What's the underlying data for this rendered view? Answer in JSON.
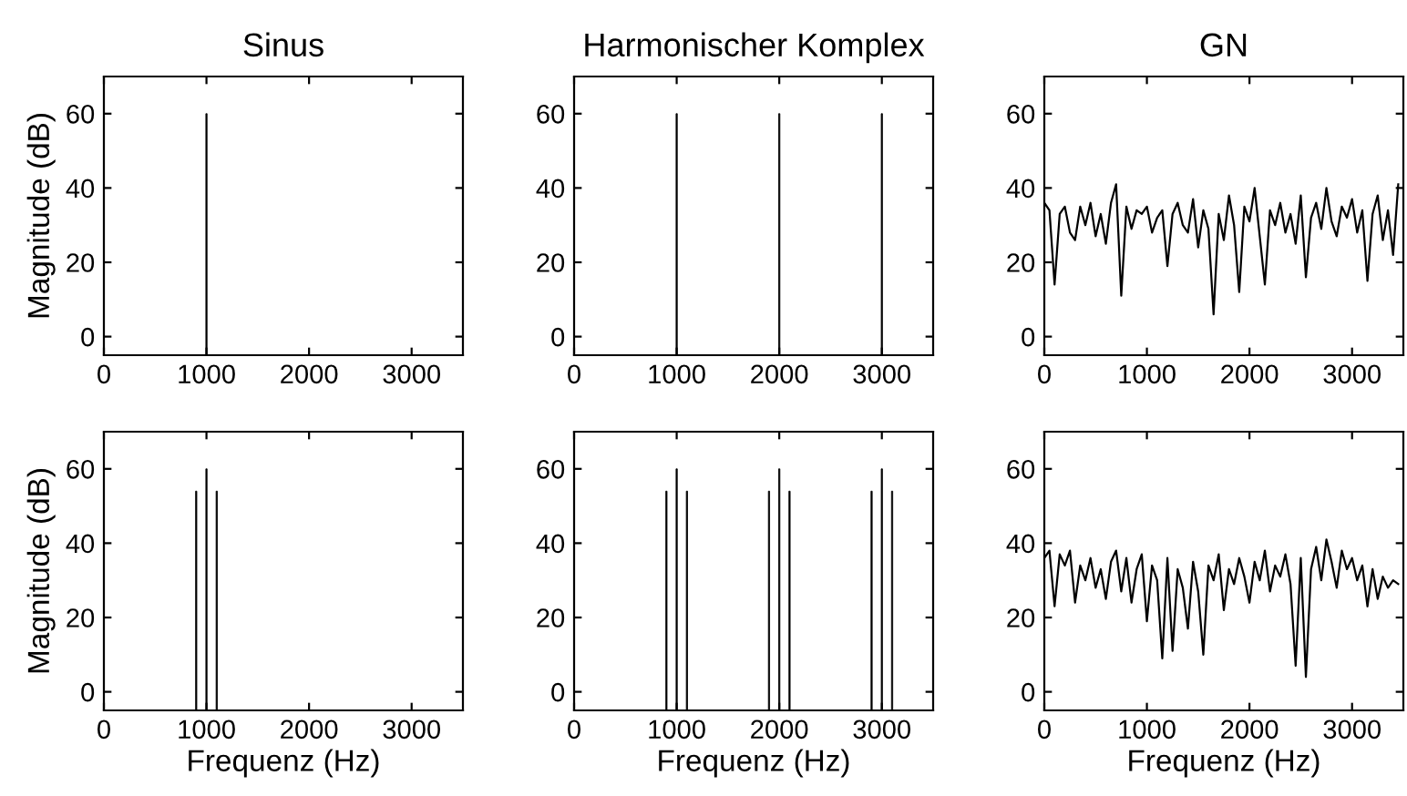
{
  "chart_data": [
    {
      "type": "bar",
      "title": "Sinus",
      "ylabel": "Magnitude (dB)",
      "x": [
        1000
      ],
      "base": [
        -5
      ],
      "values": [
        65
      ],
      "color": "#000000",
      "xlim": [
        0,
        3500
      ],
      "ylim": [
        -5,
        70
      ],
      "xticks": [
        0,
        1000,
        2000,
        3000
      ],
      "yticks": [
        0,
        20,
        40,
        60
      ],
      "grid": false
    },
    {
      "type": "bar",
      "title": "Harmonischer Komplex",
      "x": [
        1000,
        2000,
        3000
      ],
      "base": [
        -5,
        -5,
        -5
      ],
      "values": [
        65,
        65,
        65
      ],
      "color": "#000000",
      "xlim": [
        0,
        3500
      ],
      "ylim": [
        -5,
        70
      ],
      "xticks": [
        0,
        1000,
        2000,
        3000
      ],
      "yticks": [
        0,
        20,
        40,
        60
      ],
      "grid": false
    },
    {
      "type": "line",
      "title": "GN",
      "x": [
        0,
        50,
        100,
        150,
        200,
        250,
        300,
        350,
        400,
        450,
        500,
        550,
        600,
        650,
        700,
        750,
        800,
        850,
        900,
        950,
        1000,
        1050,
        1100,
        1150,
        1200,
        1250,
        1300,
        1350,
        1400,
        1450,
        1500,
        1550,
        1600,
        1650,
        1700,
        1750,
        1800,
        1850,
        1900,
        1950,
        2000,
        2050,
        2100,
        2150,
        2200,
        2250,
        2300,
        2350,
        2400,
        2450,
        2500,
        2550,
        2600,
        2650,
        2700,
        2750,
        2800,
        2850,
        2900,
        2950,
        3000,
        3050,
        3100,
        3150,
        3200,
        3250,
        3300,
        3350,
        3400,
        3450
      ],
      "values": [
        36,
        34,
        14,
        33,
        35,
        28,
        26,
        35,
        30,
        36,
        27,
        33,
        25,
        36,
        41,
        11,
        35,
        29,
        34,
        33,
        35,
        28,
        32,
        34,
        19,
        33,
        36,
        30,
        28,
        37,
        24,
        34,
        29,
        6,
        33,
        26,
        38,
        30,
        12,
        35,
        31,
        40,
        27,
        14,
        34,
        30,
        36,
        28,
        33,
        25,
        38,
        16,
        32,
        36,
        29,
        40,
        31,
        27,
        35,
        32,
        37,
        28,
        34,
        15,
        33,
        38,
        26,
        34,
        22,
        41
      ],
      "color": "#000000",
      "xlim": [
        0,
        3500
      ],
      "ylim": [
        -5,
        70
      ],
      "xticks": [
        0,
        1000,
        2000,
        3000
      ],
      "yticks": [
        0,
        20,
        40,
        60
      ],
      "grid": false
    },
    {
      "type": "bar",
      "ylabel": "Magnitude (dB)",
      "xlabel": "Frequenz (Hz)",
      "x": [
        900,
        1000,
        1100
      ],
      "base": [
        -5,
        -5,
        -5
      ],
      "values": [
        59,
        65,
        59
      ],
      "color": "#000000",
      "xlim": [
        0,
        3500
      ],
      "ylim": [
        -5,
        70
      ],
      "xticks": [
        0,
        1000,
        2000,
        3000
      ],
      "yticks": [
        0,
        20,
        40,
        60
      ],
      "grid": false
    },
    {
      "type": "bar",
      "xlabel": "Frequenz (Hz)",
      "x": [
        900,
        1000,
        1100,
        1900,
        2000,
        2100,
        2900,
        3000,
        3100
      ],
      "base": [
        -5,
        -5,
        -5,
        -5,
        -5,
        -5,
        -5,
        -5,
        -5
      ],
      "values": [
        59,
        65,
        59,
        59,
        65,
        59,
        59,
        65,
        59
      ],
      "color": "#000000",
      "xlim": [
        0,
        3500
      ],
      "ylim": [
        -5,
        70
      ],
      "xticks": [
        0,
        1000,
        2000,
        3000
      ],
      "yticks": [
        0,
        20,
        40,
        60
      ],
      "grid": false
    },
    {
      "type": "line",
      "xlabel": "Frequenz (Hz)",
      "x": [
        0,
        50,
        100,
        150,
        200,
        250,
        300,
        350,
        400,
        450,
        500,
        550,
        600,
        650,
        700,
        750,
        800,
        850,
        900,
        950,
        1000,
        1050,
        1100,
        1150,
        1200,
        1250,
        1300,
        1350,
        1400,
        1450,
        1500,
        1550,
        1600,
        1650,
        1700,
        1750,
        1800,
        1850,
        1900,
        1950,
        2000,
        2050,
        2100,
        2150,
        2200,
        2250,
        2300,
        2350,
        2400,
        2450,
        2500,
        2550,
        2600,
        2650,
        2700,
        2750,
        2800,
        2850,
        2900,
        2950,
        3000,
        3050,
        3100,
        3150,
        3200,
        3250,
        3300,
        3350,
        3400,
        3450
      ],
      "values": [
        36,
        38,
        23,
        37,
        34,
        38,
        24,
        34,
        30,
        36,
        28,
        33,
        25,
        35,
        38,
        27,
        36,
        24,
        33,
        37,
        19,
        34,
        30,
        9,
        36,
        11,
        33,
        28,
        17,
        35,
        27,
        10,
        34,
        30,
        37,
        22,
        33,
        29,
        36,
        31,
        24,
        35,
        30,
        38,
        27,
        34,
        31,
        37,
        29,
        7,
        36,
        4,
        33,
        39,
        30,
        41,
        35,
        28,
        38,
        33,
        36,
        30,
        34,
        23,
        33,
        25,
        31,
        28,
        30,
        29
      ],
      "color": "#000000",
      "xlim": [
        0,
        3500
      ],
      "ylim": [
        -5,
        70
      ],
      "xticks": [
        0,
        1000,
        2000,
        3000
      ],
      "yticks": [
        0,
        20,
        40,
        60
      ],
      "grid": false
    }
  ]
}
